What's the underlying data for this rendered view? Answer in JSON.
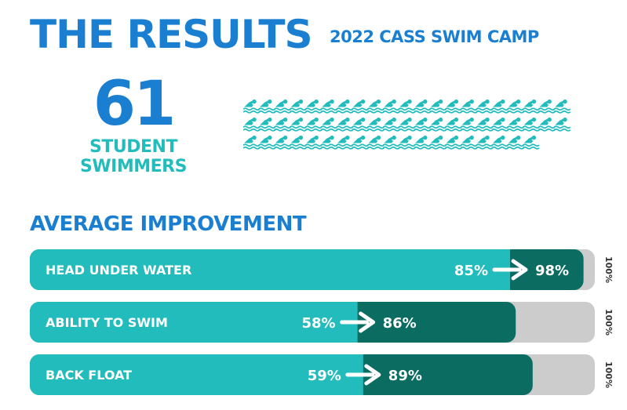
{
  "header": {
    "title": "THE RESULTS",
    "subtitle": "2022 CASS SWIM CAMP"
  },
  "stat": {
    "value": "61",
    "caption_line1": "STUDENT",
    "caption_line2": "SWIMMERS"
  },
  "swimmer_icon": "swimmer-icon",
  "section": {
    "title": "AVERAGE IMPROVEMENT"
  },
  "colors": {
    "blue": "#1a7fd0",
    "teal": "#22bcbc",
    "dark_teal": "#0b6d62",
    "gray": "#cccccc",
    "white": "#ffffff",
    "dark_text": "#333333"
  },
  "chart_data": {
    "type": "bar",
    "categories": [
      "HEAD UNDER WATER",
      "ABILITY TO SWIM",
      "BACK FLOAT"
    ],
    "series": [
      {
        "name": "",
        "values": [
          85,
          58,
          59
        ],
        "labels": [
          "85%",
          "58%",
          "59%"
        ]
      },
      {
        "name": "",
        "values": [
          98,
          86,
          89
        ],
        "labels": [
          "98%",
          "86%",
          "89%"
        ]
      }
    ],
    "max_labels": [
      "100%",
      "100%",
      "100%"
    ],
    "ylim": [
      0,
      100
    ],
    "title": "AVERAGE IMPROVEMENT"
  }
}
